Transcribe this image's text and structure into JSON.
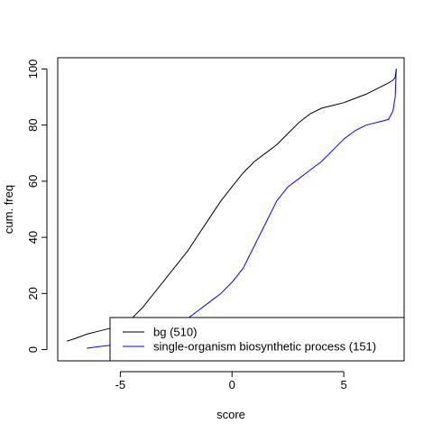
{
  "chart_data": {
    "type": "line",
    "xlabel": "score",
    "ylabel": "cum. freq",
    "xlim": [
      -7.8,
      7.7
    ],
    "ylim": [
      -4,
      104
    ],
    "x_ticks": [
      -5,
      0,
      5
    ],
    "x_tick_labels": [
      "-5",
      "0",
      "5"
    ],
    "y_ticks": [
      0,
      20,
      40,
      60,
      80,
      100
    ],
    "y_tick_labels": [
      "0",
      "20",
      "40",
      "60",
      "80",
      "100"
    ],
    "grid": false,
    "legend_position": "bottom-right",
    "series": [
      {
        "name": "bg (510)",
        "color": "#000000",
        "x": [
          -7.4,
          -7.0,
          -6.5,
          -6.0,
          -5.5,
          -5.0,
          -4.8,
          -4.5,
          -4.0,
          -3.5,
          -3.0,
          -2.5,
          -2.0,
          -1.5,
          -1.0,
          -0.5,
          0.0,
          0.5,
          1.0,
          1.5,
          2.0,
          2.5,
          3.0,
          3.5,
          4.0,
          4.5,
          5.0,
          5.5,
          6.0,
          6.5,
          7.0,
          7.2,
          7.3,
          7.35
        ],
        "y": [
          3,
          4,
          5.5,
          6.5,
          7.5,
          8.5,
          9,
          11,
          15,
          20,
          25,
          30,
          35,
          41,
          47,
          53,
          58,
          63,
          67,
          70,
          73,
          77,
          81,
          84,
          86,
          87,
          88,
          89.5,
          91,
          93,
          95,
          96,
          97,
          100
        ]
      },
      {
        "name": "single-organism biosynthetic process (151)",
        "color": "#0000ff",
        "x": [
          -6.5,
          -6.0,
          -5.5,
          -5.0,
          -4.5,
          -4.0,
          -3.5,
          -3.0,
          -2.5,
          -2.0,
          -1.5,
          -1.0,
          -0.5,
          0.0,
          0.5,
          1.0,
          1.5,
          2.0,
          2.5,
          3.0,
          3.5,
          4.0,
          4.5,
          5.0,
          5.5,
          6.0,
          6.5,
          7.0,
          7.2,
          7.3,
          7.35
        ],
        "y": [
          0.5,
          1,
          1.5,
          2,
          3,
          4,
          5,
          7,
          9,
          11,
          14,
          17,
          20,
          24,
          29,
          37,
          45,
          53,
          58,
          61,
          64,
          67,
          71,
          75,
          78,
          80,
          81,
          82,
          85,
          90,
          100
        ]
      }
    ]
  }
}
